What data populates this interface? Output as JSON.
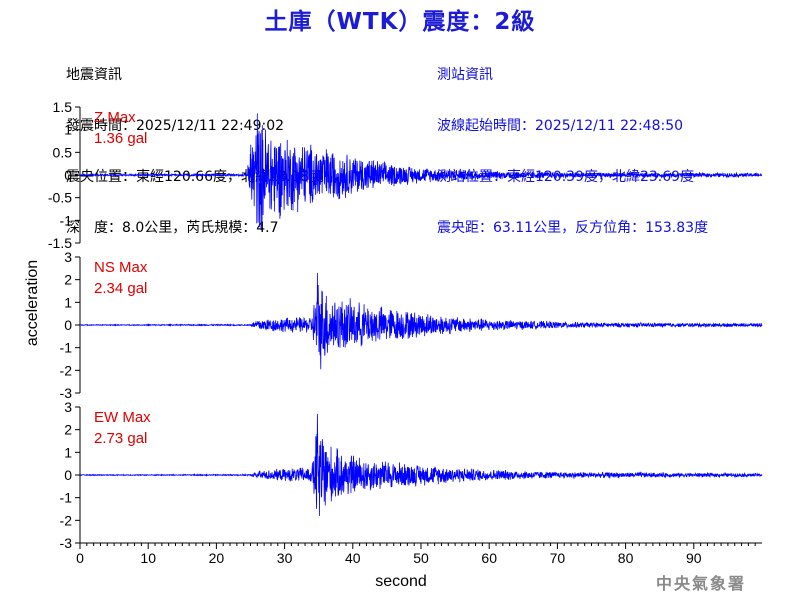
{
  "title": "土庫（WTK）震度：2級",
  "info_left": [
    "地震資訊",
    "發震時間：2025/12/11 22:49:02",
    "震央位置：東經120.66度，北緯23.18度",
    "深　度：8.0公里，芮氏規模：4.7"
  ],
  "info_right": [
    "測站資訊",
    "波線起始時間：2025/12/11 22:48:50",
    "測站位置：東經120.39度，北緯23.69度",
    "震央距：63.11公里，反方位角：153.83度"
  ],
  "footer": "中央氣象署",
  "colors": {
    "title": "#1c1cd6",
    "trace": "#0000ff",
    "max_label": "#e00000",
    "info_right": "#1010e0"
  },
  "chart_data": {
    "type": "line",
    "xlabel": "second",
    "ylabel": "acceleration",
    "xlim": [
      0,
      100
    ],
    "xticks": [
      0,
      10,
      20,
      30,
      40,
      50,
      60,
      70,
      80,
      90
    ],
    "grid": false,
    "panels": [
      {
        "name": "Z",
        "max_label": "Z Max",
        "max_value": "1.36 gal",
        "ylim": [
          -1.5,
          1.5
        ],
        "yticks": [
          "1.5",
          "1",
          "0.5",
          "0",
          "-0.5",
          "-1",
          "-1.5"
        ],
        "envelope": [
          [
            0,
            0.02
          ],
          [
            24.5,
            0.03
          ],
          [
            25,
            0.9
          ],
          [
            26,
            1.36
          ],
          [
            30,
            0.95
          ],
          [
            35,
            0.7
          ],
          [
            40,
            0.5
          ],
          [
            45,
            0.3
          ],
          [
            50,
            0.18
          ],
          [
            60,
            0.1
          ],
          [
            75,
            0.06
          ],
          [
            100,
            0.05
          ]
        ]
      },
      {
        "name": "NS",
        "max_label": "NS Max",
        "max_value": "2.34 gal",
        "ylim": [
          -3,
          3
        ],
        "yticks": [
          "3",
          "2",
          "1",
          "0",
          "-1",
          "-2",
          "-3"
        ],
        "envelope": [
          [
            0,
            0.02
          ],
          [
            25,
            0.03
          ],
          [
            26,
            0.3
          ],
          [
            34,
            0.4
          ],
          [
            34.8,
            2.3
          ],
          [
            37,
            1.4
          ],
          [
            42,
            1.0
          ],
          [
            48,
            0.7
          ],
          [
            55,
            0.4
          ],
          [
            62,
            0.25
          ],
          [
            75,
            0.12
          ],
          [
            100,
            0.08
          ]
        ]
      },
      {
        "name": "EW",
        "max_label": "EW Max",
        "max_value": "2.73 gal",
        "ylim": [
          -3,
          3
        ],
        "yticks": [
          "3",
          "2",
          "1",
          "0",
          "-1",
          "-2",
          "-3"
        ],
        "envelope": [
          [
            0,
            0.02
          ],
          [
            25,
            0.03
          ],
          [
            26,
            0.2
          ],
          [
            34,
            0.4
          ],
          [
            34.8,
            2.7
          ],
          [
            37,
            1.3
          ],
          [
            42,
            0.8
          ],
          [
            50,
            0.5
          ],
          [
            58,
            0.3
          ],
          [
            70,
            0.15
          ],
          [
            100,
            0.08
          ]
        ]
      }
    ]
  }
}
